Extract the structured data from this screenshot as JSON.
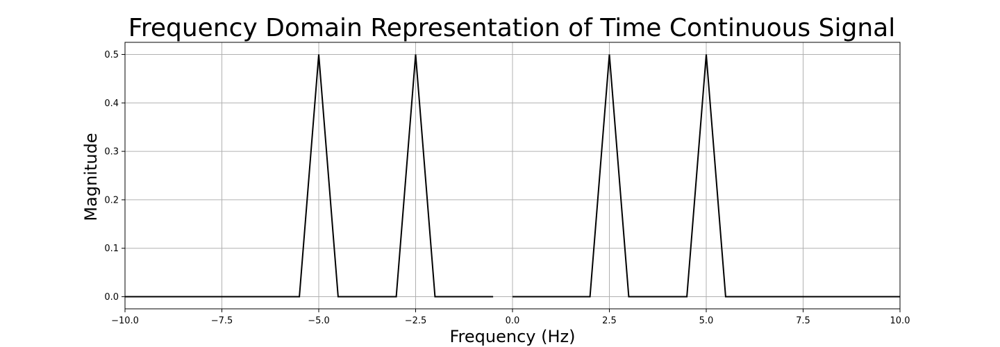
{
  "chart_data": {
    "type": "line",
    "title": "Frequency Domain Representation of Time Continuous Signal",
    "xlabel": "Frequency (Hz)",
    "ylabel": "Magnitude",
    "xlim": [
      -10,
      10
    ],
    "ylim": [
      -0.025,
      0.525
    ],
    "xticks": [
      -10.0,
      -7.5,
      -5.0,
      -2.5,
      0.0,
      2.5,
      5.0,
      7.5,
      10.0
    ],
    "xtick_labels": [
      "−10.0",
      "−7.5",
      "−5.0",
      "−2.5",
      "0.0",
      "2.5",
      "5.0",
      "7.5",
      "10.0"
    ],
    "yticks": [
      0.0,
      0.1,
      0.2,
      0.3,
      0.4,
      0.5
    ],
    "ytick_labels": [
      "0.0",
      "0.1",
      "0.2",
      "0.3",
      "0.4",
      "0.5"
    ],
    "grid": true,
    "line_color": "#000000",
    "series": [
      {
        "x": [
          -10,
          -5.5,
          -5.0,
          -4.5,
          -3.0,
          -2.5,
          -2.0,
          -0.5
        ],
        "y": [
          0,
          0,
          0.5,
          0,
          0,
          0.5,
          0,
          0
        ]
      },
      {
        "x": [
          0.0,
          2.0,
          2.5,
          3.0,
          4.5,
          5.0,
          5.5,
          10
        ],
        "y": [
          0,
          0,
          0.5,
          0,
          0,
          0.5,
          0,
          0
        ]
      }
    ]
  }
}
